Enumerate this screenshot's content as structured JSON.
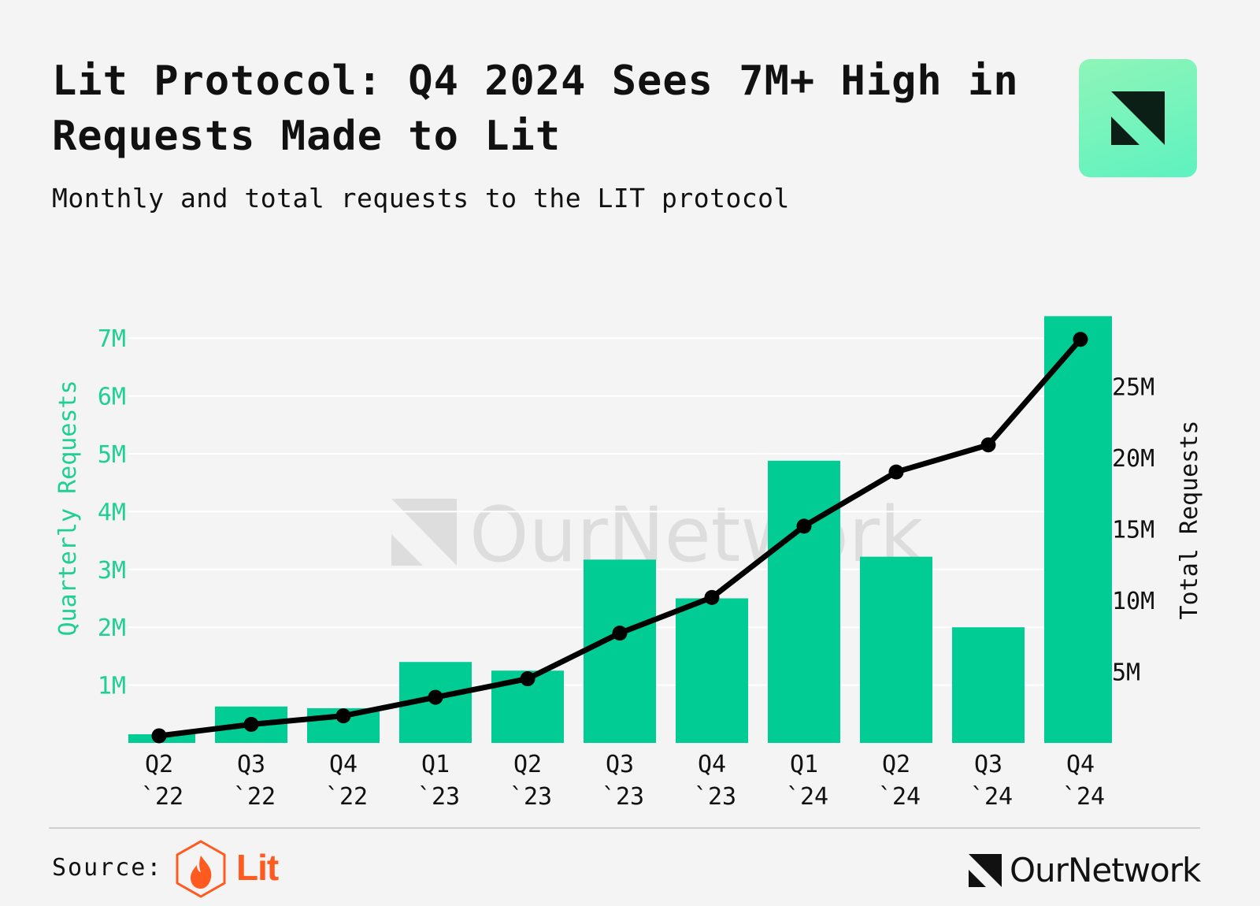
{
  "header": {
    "title": "Lit Protocol: Q4 2024 Sees 7M+ High in Requests Made to Lit",
    "subtitle": "Monthly and total requests to the LIT protocol"
  },
  "footer": {
    "source_label": "Source:",
    "source_brand": "Lit",
    "publisher": "OurNetwork",
    "watermark": "OurNetwork"
  },
  "colors": {
    "bar": "#00cc94",
    "line": "#000000",
    "left_axis": "#1fcf94",
    "right_axis": "#111111",
    "grid": "#ffffff",
    "background": "#f4f4f4",
    "lit_orange": "#ff5a1f"
  },
  "icons": [
    "ournetwork-logo-icon",
    "lit-flame-icon",
    "ournetwork-wordmark-icon"
  ],
  "chart_data": {
    "type": "bar+line",
    "categories": [
      [
        "Q2",
        "`22"
      ],
      [
        "Q3",
        "`22"
      ],
      [
        "Q4",
        "`22"
      ],
      [
        "Q1",
        "`23"
      ],
      [
        "Q2",
        "`23"
      ],
      [
        "Q3",
        "`23"
      ],
      [
        "Q4",
        "`23"
      ],
      [
        "Q1",
        "`24"
      ],
      [
        "Q2",
        "`24"
      ],
      [
        "Q3",
        "`24"
      ],
      [
        "Q4",
        "`24"
      ]
    ],
    "series": [
      {
        "name": "Quarterly Requests",
        "type": "bar",
        "axis": "left",
        "values": [
          0.15,
          0.63,
          0.6,
          1.4,
          1.25,
          3.17,
          2.5,
          4.88,
          3.22,
          2.0,
          7.38
        ]
      },
      {
        "name": "Total Requests",
        "type": "line",
        "axis": "right",
        "values": [
          0.5,
          1.3,
          1.9,
          3.2,
          4.5,
          7.7,
          10.2,
          15.2,
          19.0,
          20.9,
          28.3
        ]
      }
    ],
    "left_axis": {
      "label": "Quarterly Requests",
      "range": [
        0,
        7
      ],
      "ticks": [
        1,
        2,
        3,
        4,
        5,
        6,
        7
      ],
      "tick_labels": [
        "1M",
        "2M",
        "3M",
        "4M",
        "5M",
        "6M",
        "7M"
      ]
    },
    "right_axis": {
      "label": "Total Requests",
      "range": [
        0,
        25
      ],
      "ticks": [
        5,
        10,
        15,
        20,
        25
      ],
      "tick_labels": [
        "5M",
        "10M",
        "15M",
        "20M",
        "25M"
      ]
    },
    "grid": true,
    "legend": "none"
  }
}
